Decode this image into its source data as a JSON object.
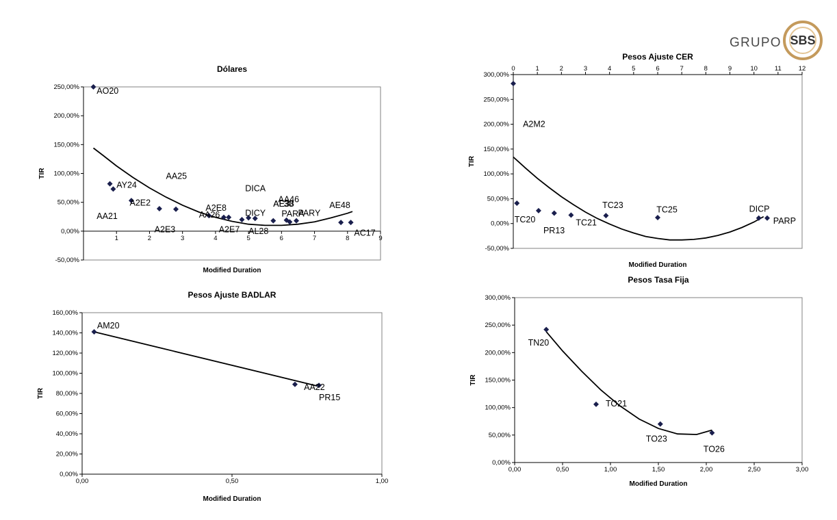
{
  "logo": {
    "text": "GRUPO",
    "mark": "SBS",
    "ring_color": "#c49a5c"
  },
  "colors": {
    "marker": "#1a1f4d",
    "axis": "#808080",
    "line": "#000000"
  },
  "chart_data": [
    {
      "id": "dolares",
      "type": "scatter",
      "title": "Dólares",
      "xlabel": "Modified Duration",
      "ylabel": "TIR",
      "xlim": [
        0,
        9
      ],
      "ylim": [
        -50,
        250
      ],
      "xticks": [
        "",
        "1",
        "2",
        "3",
        "4",
        "5",
        "6",
        "7",
        "8",
        "9"
      ],
      "xtick_values": [
        0,
        1,
        2,
        3,
        4,
        5,
        6,
        7,
        8,
        9
      ],
      "yticks": [
        "-50,00%",
        "0,00%",
        "50,00%",
        "100,00%",
        "150,00%",
        "200,00%",
        "250,00%"
      ],
      "ytick_values": [
        -50,
        0,
        50,
        100,
        150,
        200,
        250
      ],
      "x_axis_at": 0,
      "points": [
        {
          "x": 0.3,
          "y": 250
        },
        {
          "x": 0.8,
          "y": 82
        },
        {
          "x": 0.9,
          "y": 73
        },
        {
          "x": 1.45,
          "y": 53
        },
        {
          "x": 2.3,
          "y": 39
        },
        {
          "x": 2.8,
          "y": 38
        },
        {
          "x": 3.8,
          "y": 27
        },
        {
          "x": 4.25,
          "y": 24
        },
        {
          "x": 4.4,
          "y": 24
        },
        {
          "x": 4.8,
          "y": 20
        },
        {
          "x": 5.0,
          "y": 23
        },
        {
          "x": 5.2,
          "y": 22
        },
        {
          "x": 5.75,
          "y": 18
        },
        {
          "x": 6.15,
          "y": 19
        },
        {
          "x": 6.25,
          "y": 16
        },
        {
          "x": 6.45,
          "y": 18
        },
        {
          "x": 7.8,
          "y": 15
        },
        {
          "x": 8.1,
          "y": 15
        }
      ],
      "labels": [
        {
          "text": "AO20",
          "x": 0.4,
          "y": 243
        },
        {
          "text": "AY24",
          "x": 1.0,
          "y": 80
        },
        {
          "text": "AA21",
          "x": 0.4,
          "y": 26
        },
        {
          "text": "A2E2",
          "x": 1.4,
          "y": 49
        },
        {
          "text": "AA25",
          "x": 2.5,
          "y": 95
        },
        {
          "text": "A2E3",
          "x": 2.15,
          "y": 3
        },
        {
          "text": "A2E8",
          "x": 3.7,
          "y": 40
        },
        {
          "text": "AA26",
          "x": 3.5,
          "y": 28
        },
        {
          "text": "A2E7",
          "x": 4.1,
          "y": 3
        },
        {
          "text": "DICA",
          "x": 4.9,
          "y": 74
        },
        {
          "text": "DICY",
          "x": 4.9,
          "y": 31
        },
        {
          "text": "AL28",
          "x": 5.0,
          "y": 0
        },
        {
          "text": "AA46",
          "x": 5.9,
          "y": 55
        },
        {
          "text": "AE38",
          "x": 5.75,
          "y": 47
        },
        {
          "text": "AL30",
          "x": 5.75,
          "y": 47
        },
        {
          "text": "PARA",
          "x": 6.0,
          "y": 30
        },
        {
          "text": "PARY",
          "x": 6.5,
          "y": 31
        },
        {
          "text": "AE48",
          "x": 7.45,
          "y": 45
        },
        {
          "text": "AC17",
          "x": 8.2,
          "y": -3
        }
      ],
      "trend": [
        {
          "x": 0.3,
          "y": 144
        },
        {
          "x": 0.6,
          "y": 131
        },
        {
          "x": 1.0,
          "y": 113
        },
        {
          "x": 1.5,
          "y": 93
        },
        {
          "x": 2.0,
          "y": 75
        },
        {
          "x": 2.5,
          "y": 59
        },
        {
          "x": 3.0,
          "y": 45
        },
        {
          "x": 3.5,
          "y": 33
        },
        {
          "x": 4.0,
          "y": 24
        },
        {
          "x": 4.5,
          "y": 17
        },
        {
          "x": 5.0,
          "y": 12
        },
        {
          "x": 5.5,
          "y": 10
        },
        {
          "x": 6.0,
          "y": 10
        },
        {
          "x": 6.5,
          "y": 12
        },
        {
          "x": 7.0,
          "y": 16
        },
        {
          "x": 7.5,
          "y": 23
        },
        {
          "x": 8.0,
          "y": 31
        },
        {
          "x": 8.15,
          "y": 34
        }
      ]
    },
    {
      "id": "cer",
      "type": "scatter",
      "title": "Pesos Ajuste CER",
      "xlabel": "Modified Duration",
      "ylabel": "TIR",
      "xlim": [
        0,
        12
      ],
      "ylim": [
        -50,
        300
      ],
      "xticks": [
        "0",
        "1",
        "2",
        "3",
        "4",
        "5",
        "6",
        "7",
        "8",
        "9",
        "10",
        "11",
        "12"
      ],
      "xtick_values": [
        0,
        1,
        2,
        3,
        4,
        5,
        6,
        7,
        8,
        9,
        10,
        11,
        12
      ],
      "yticks": [
        "-50,00%",
        "0,00%",
        "50,00%",
        "100,00%",
        "150,00%",
        "200,00%",
        "250,00%",
        "300,00%"
      ],
      "ytick_values": [
        -50,
        0,
        50,
        100,
        150,
        200,
        250,
        300
      ],
      "x_axis_at": 300,
      "points": [
        {
          "x": 0.0,
          "y": 282
        },
        {
          "x": 0.15,
          "y": 41
        },
        {
          "x": 1.05,
          "y": 26
        },
        {
          "x": 1.7,
          "y": 21
        },
        {
          "x": 2.4,
          "y": 17
        },
        {
          "x": 3.85,
          "y": 16
        },
        {
          "x": 6.0,
          "y": 12
        },
        {
          "x": 10.2,
          "y": 11
        },
        {
          "x": 10.55,
          "y": 11
        }
      ],
      "labels": [
        {
          "text": "A2M2",
          "x": 0.4,
          "y": 200
        },
        {
          "text": "TC20",
          "x": 0.05,
          "y": 8
        },
        {
          "text": "PR13",
          "x": 1.25,
          "y": -14
        },
        {
          "text": "TC21",
          "x": 2.6,
          "y": 2
        },
        {
          "text": "TC23",
          "x": 3.7,
          "y": 37
        },
        {
          "text": "TC25",
          "x": 5.95,
          "y": 28
        },
        {
          "text": "DICP",
          "x": 9.8,
          "y": 29
        },
        {
          "text": "PARP",
          "x": 10.8,
          "y": 5
        }
      ],
      "trend": [
        {
          "x": 0.0,
          "y": 134
        },
        {
          "x": 0.5,
          "y": 112
        },
        {
          "x": 1.0,
          "y": 91
        },
        {
          "x": 1.5,
          "y": 72
        },
        {
          "x": 2.0,
          "y": 54
        },
        {
          "x": 2.5,
          "y": 38
        },
        {
          "x": 3.0,
          "y": 23
        },
        {
          "x": 3.5,
          "y": 10
        },
        {
          "x": 4.0,
          "y": -1
        },
        {
          "x": 4.5,
          "y": -11
        },
        {
          "x": 5.0,
          "y": -19
        },
        {
          "x": 5.5,
          "y": -26
        },
        {
          "x": 6.0,
          "y": -30
        },
        {
          "x": 6.5,
          "y": -33
        },
        {
          "x": 7.0,
          "y": -33
        },
        {
          "x": 7.5,
          "y": -32
        },
        {
          "x": 8.0,
          "y": -29
        },
        {
          "x": 8.5,
          "y": -24
        },
        {
          "x": 9.0,
          "y": -17
        },
        {
          "x": 9.5,
          "y": -8
        },
        {
          "x": 10.0,
          "y": 3
        },
        {
          "x": 10.4,
          "y": 14
        }
      ]
    },
    {
      "id": "badlar",
      "type": "scatter",
      "title": "Pesos Ajuste BADLAR",
      "xlabel": "Modified Duration",
      "ylabel": "TIR",
      "xlim": [
        0,
        1
      ],
      "ylim": [
        0,
        160
      ],
      "xticks": [
        "0,00",
        "0,50",
        "1,00"
      ],
      "xtick_values": [
        0,
        0.5,
        1
      ],
      "yticks": [
        "0,00%",
        "20,00%",
        "40,00%",
        "60,00%",
        "80,00%",
        "100,00%",
        "120,00%",
        "140,00%",
        "160,00%"
      ],
      "ytick_values": [
        0,
        20,
        40,
        60,
        80,
        100,
        120,
        140,
        160
      ],
      "x_axis_at": 0,
      "points": [
        {
          "x": 0.04,
          "y": 141
        },
        {
          "x": 0.71,
          "y": 89
        },
        {
          "x": 0.79,
          "y": 88
        }
      ],
      "labels": [
        {
          "text": "AM20",
          "x": 0.05,
          "y": 147
        },
        {
          "text": "AA22",
          "x": 0.74,
          "y": 86
        },
        {
          "text": "PR15",
          "x": 0.79,
          "y": 76
        }
      ],
      "trend": [
        {
          "x": 0.04,
          "y": 141
        },
        {
          "x": 0.79,
          "y": 87
        }
      ]
    },
    {
      "id": "tasafija",
      "type": "scatter",
      "title": "Pesos Tasa Fija",
      "xlabel": "Modified Duration",
      "ylabel": "TIR",
      "xlim": [
        0,
        3
      ],
      "ylim": [
        0,
        300
      ],
      "xticks": [
        "0,00",
        "0,50",
        "1,00",
        "1,50",
        "2,00",
        "2,50",
        "3,00"
      ],
      "xtick_values": [
        0,
        0.5,
        1,
        1.5,
        2,
        2.5,
        3
      ],
      "yticks": [
        "0,00%",
        "50,00%",
        "100,00%",
        "150,00%",
        "200,00%",
        "250,00%",
        "300,00%"
      ],
      "ytick_values": [
        0,
        50,
        100,
        150,
        200,
        250,
        300
      ],
      "x_axis_at": 0,
      "points": [
        {
          "x": 0.33,
          "y": 242
        },
        {
          "x": 0.85,
          "y": 106
        },
        {
          "x": 1.52,
          "y": 70
        },
        {
          "x": 2.06,
          "y": 54
        }
      ],
      "labels": [
        {
          "text": "TN20",
          "x": 0.14,
          "y": 218
        },
        {
          "text": "TO21",
          "x": 0.95,
          "y": 107
        },
        {
          "text": "TO23",
          "x": 1.37,
          "y": 43
        },
        {
          "text": "TO26",
          "x": 1.97,
          "y": 24
        }
      ],
      "trend": [
        {
          "x": 0.33,
          "y": 238
        },
        {
          "x": 0.5,
          "y": 203
        },
        {
          "x": 0.7,
          "y": 166
        },
        {
          "x": 0.9,
          "y": 132
        },
        {
          "x": 1.1,
          "y": 103
        },
        {
          "x": 1.3,
          "y": 79
        },
        {
          "x": 1.5,
          "y": 62
        },
        {
          "x": 1.7,
          "y": 52
        },
        {
          "x": 1.9,
          "y": 51
        },
        {
          "x": 2.06,
          "y": 59
        }
      ]
    }
  ]
}
